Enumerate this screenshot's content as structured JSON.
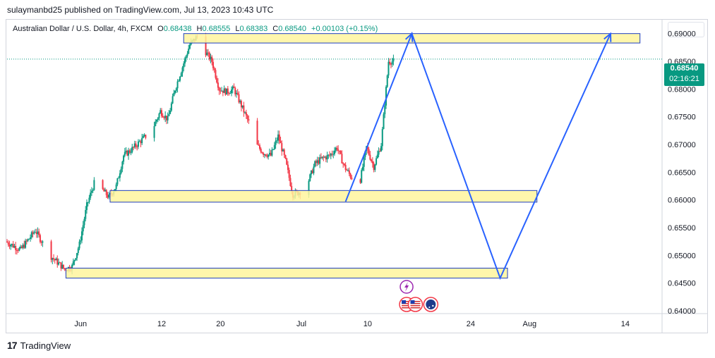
{
  "header": {
    "published": "sulaymanbd25 published on TradingView.com, Jul 13, 2023 10:43 UTC"
  },
  "legend": {
    "symbol": "Australian Dollar / U.S. Dollar, 4h, FXCM",
    "o_label": "O",
    "o_value": "0.68438",
    "h_label": "H",
    "h_value": "0.68555",
    "l_label": "L",
    "l_value": "0.68383",
    "c_label": "C",
    "c_value": "0.68540",
    "change": "+0.00103 (+0.15%)"
  },
  "price_tag": {
    "price": "0.68540",
    "countdown": "02:16:21"
  },
  "footer": {
    "brand": "TradingView",
    "logo": "17"
  },
  "colors": {
    "up": "#089981",
    "down": "#f23645",
    "zone_fill": "#fff59d",
    "zone_border": "#1e3fbf",
    "projection": "#2962ff"
  },
  "chart_data": {
    "type": "candlestick",
    "symbol": "AUDUSD",
    "interval": "4h",
    "last_price": 0.6854,
    "ylim": [
      0.6395,
      0.6925
    ],
    "y_ticks": [
      0.69,
      0.685,
      0.68,
      0.675,
      0.67,
      0.665,
      0.66,
      0.655,
      0.65,
      0.645,
      0.64
    ],
    "y_tick_labels": [
      "0.69000",
      "0.68500",
      "0.68000",
      "0.67500",
      "0.67000",
      "0.66500",
      "0.66000",
      "0.65500",
      "0.65000",
      "0.64500",
      "0.64000"
    ],
    "x_ticks": [
      {
        "label": "Jun",
        "date": "2023-06-01"
      },
      {
        "label": "12",
        "date": "2023-06-12"
      },
      {
        "label": "20",
        "date": "2023-06-20"
      },
      {
        "label": "Jul",
        "date": "2023-07-01"
      },
      {
        "label": "10",
        "date": "2023-07-10"
      },
      {
        "label": "24",
        "date": "2023-07-24"
      },
      {
        "label": "Aug",
        "date": "2023-08-01"
      },
      {
        "label": "14",
        "date": "2023-08-14"
      }
    ],
    "xlim": [
      "2023-05-22",
      "2023-08-19"
    ],
    "price_path": [
      [
        "2023-05-22",
        0.6525
      ],
      [
        "2023-05-24",
        0.651
      ],
      [
        "2023-05-26",
        0.6545
      ],
      [
        "2023-05-28",
        0.65
      ],
      [
        "2023-05-30",
        0.6475
      ],
      [
        "2023-05-31",
        0.648
      ],
      [
        "2023-06-01",
        0.652
      ],
      [
        "2023-06-02",
        0.659
      ],
      [
        "2023-06-03",
        0.663
      ],
      [
        "2023-06-04",
        0.662
      ],
      [
        "2023-06-05",
        0.6605
      ],
      [
        "2023-06-06",
        0.6625
      ],
      [
        "2023-06-07",
        0.668
      ],
      [
        "2023-06-08",
        0.669
      ],
      [
        "2023-06-10",
        0.6715
      ],
      [
        "2023-06-11",
        0.673
      ],
      [
        "2023-06-12",
        0.676
      ],
      [
        "2023-06-13",
        0.6745
      ],
      [
        "2023-06-14",
        0.68
      ],
      [
        "2023-06-15",
        0.684
      ],
      [
        "2023-06-16",
        0.688
      ],
      [
        "2023-06-17",
        0.6895
      ],
      [
        "2023-06-18",
        0.687
      ],
      [
        "2023-06-19",
        0.685
      ],
      [
        "2023-06-20",
        0.68
      ],
      [
        "2023-06-21",
        0.6795
      ],
      [
        "2023-06-22",
        0.68
      ],
      [
        "2023-06-23",
        0.677
      ],
      [
        "2023-06-24",
        0.674
      ],
      [
        "2023-06-25",
        0.67
      ],
      [
        "2023-06-26",
        0.6685
      ],
      [
        "2023-06-27",
        0.668
      ],
      [
        "2023-06-28",
        0.6715
      ],
      [
        "2023-06-29",
        0.667
      ],
      [
        "2023-06-30",
        0.661
      ],
      [
        "2023-07-01",
        0.6615
      ],
      [
        "2023-07-02",
        0.663
      ],
      [
        "2023-07-03",
        0.6665
      ],
      [
        "2023-07-04",
        0.6675
      ],
      [
        "2023-07-05",
        0.668
      ],
      [
        "2023-07-06",
        0.6695
      ],
      [
        "2023-07-07",
        0.666
      ],
      [
        "2023-07-08",
        0.664
      ],
      [
        "2023-07-09",
        0.6625
      ],
      [
        "2023-07-10",
        0.6695
      ],
      [
        "2023-07-11",
        0.666
      ],
      [
        "2023-07-12",
        0.67
      ],
      [
        "2023-07-13",
        0.685
      ]
    ],
    "zones": [
      {
        "from": "2023-06-15",
        "to": "2023-08-16",
        "low": 0.6883,
        "high": 0.69
      },
      {
        "from": "2023-06-05",
        "to": "2023-08-02",
        "low": 0.6596,
        "high": 0.6617
      },
      {
        "from": "2023-05-30",
        "to": "2023-07-29",
        "low": 0.6459,
        "high": 0.6477
      }
    ],
    "projection": [
      [
        "2023-07-07",
        0.6597
      ],
      [
        "2023-07-16",
        0.69
      ],
      [
        "2023-07-28",
        0.6459
      ],
      [
        "2023-08-12",
        0.69
      ]
    ],
    "current_price_line": 0.6854,
    "event_icons": [
      {
        "date": "2023-07-15",
        "type": "lightning"
      },
      {
        "date": "2023-07-15",
        "type": "us-flag"
      },
      {
        "date": "2023-07-16",
        "type": "us-flag"
      },
      {
        "date": "2023-07-18",
        "type": "au-flag"
      }
    ]
  }
}
